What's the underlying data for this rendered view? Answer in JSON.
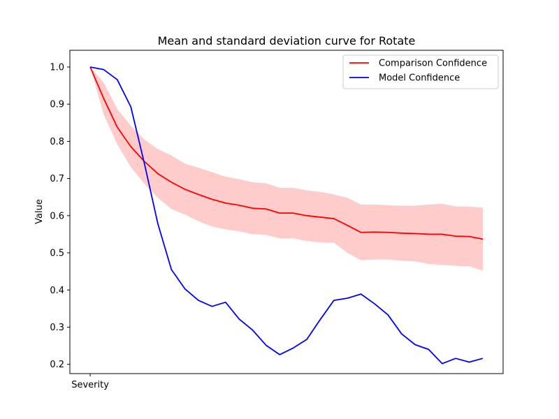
{
  "chart_data": {
    "type": "line",
    "title": "Mean and standard deviation curve for Rotate",
    "xlabel": "",
    "ylabel": "Value",
    "x_tick_labels": [
      "Severity"
    ],
    "y_ticks": [
      0.2,
      0.3,
      0.4,
      0.5,
      0.6,
      0.7,
      0.8,
      0.9,
      1.0
    ],
    "y_tick_labels": [
      "0.2",
      "0.3",
      "0.4",
      "0.5",
      "0.6",
      "0.7",
      "0.8",
      "0.9",
      "1.0"
    ],
    "ylim": [
      0.175,
      1.045
    ],
    "xlim": [
      -1.5,
      30.5
    ],
    "legend_position": "top-right",
    "series": [
      {
        "name": "Comparison Confidence",
        "color": "#ff0000",
        "values": [
          1.0,
          0.915,
          0.838,
          0.786,
          0.746,
          0.713,
          0.69,
          0.671,
          0.657,
          0.644,
          0.634,
          0.628,
          0.62,
          0.618,
          0.607,
          0.607,
          0.6,
          0.596,
          0.592,
          0.574,
          0.555,
          0.556,
          0.555,
          0.553,
          0.552,
          0.55,
          0.55,
          0.545,
          0.544,
          0.537
        ],
        "std_band": {
          "color": "#ffcccc",
          "upper": [
            1.0,
            0.958,
            0.887,
            0.842,
            0.805,
            0.779,
            0.762,
            0.74,
            0.729,
            0.717,
            0.705,
            0.698,
            0.69,
            0.687,
            0.675,
            0.675,
            0.668,
            0.664,
            0.657,
            0.648,
            0.63,
            0.63,
            0.628,
            0.627,
            0.627,
            0.63,
            0.632,
            0.625,
            0.624,
            0.622
          ],
          "lower": [
            1.0,
            0.872,
            0.792,
            0.731,
            0.686,
            0.648,
            0.618,
            0.603,
            0.585,
            0.571,
            0.563,
            0.558,
            0.55,
            0.548,
            0.539,
            0.539,
            0.532,
            0.528,
            0.527,
            0.5,
            0.48,
            0.482,
            0.482,
            0.479,
            0.477,
            0.47,
            0.468,
            0.465,
            0.464,
            0.452
          ]
        }
      },
      {
        "name": "Model Confidence",
        "color": "#0000ff",
        "values": [
          1.0,
          0.993,
          0.966,
          0.893,
          0.741,
          0.578,
          0.455,
          0.403,
          0.372,
          0.356,
          0.367,
          0.322,
          0.292,
          0.251,
          0.226,
          0.244,
          0.267,
          0.321,
          0.372,
          0.378,
          0.389,
          0.363,
          0.333,
          0.282,
          0.253,
          0.24,
          0.202,
          0.216,
          0.206,
          0.216
        ]
      }
    ]
  }
}
